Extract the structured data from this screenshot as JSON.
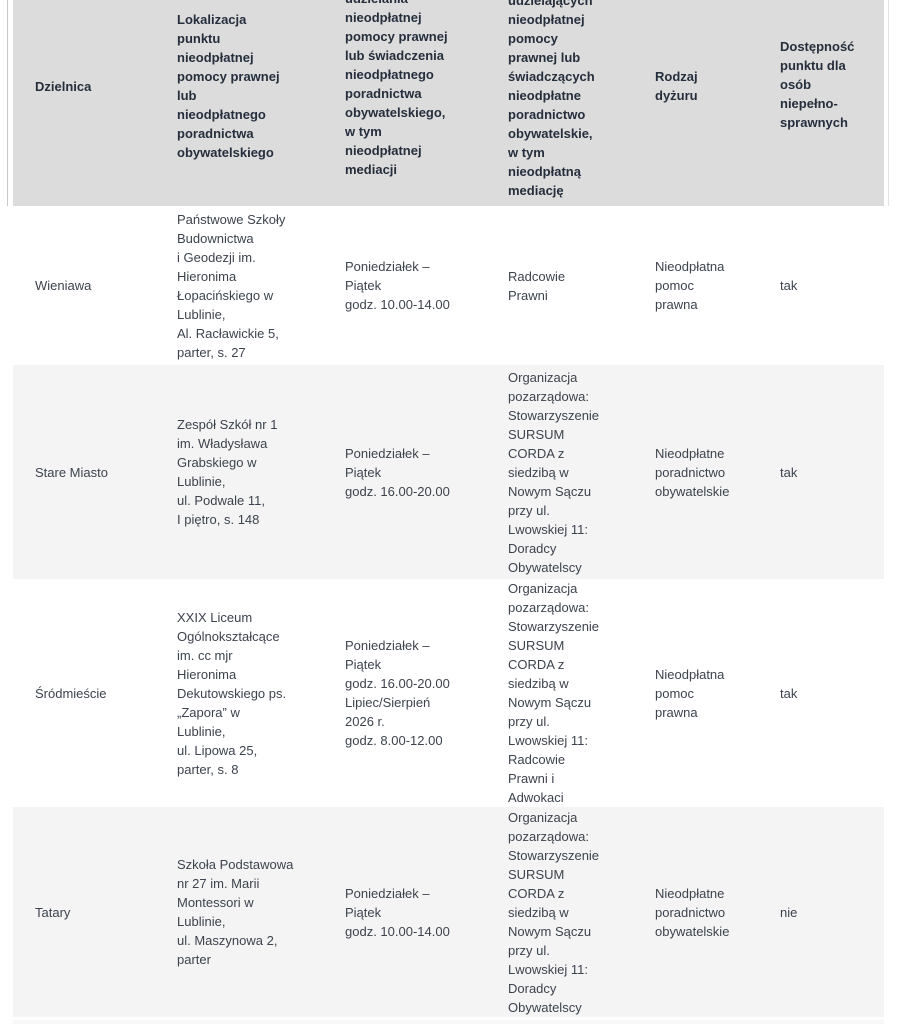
{
  "colors": {
    "header_bg": "#dcdcdc",
    "row_alt_bg": "#f4f4f4",
    "row_bg": "#ffffff",
    "header_text": "#252e3c",
    "body_text": "#3d434d"
  },
  "table": {
    "columns": [
      {
        "label": "Dzielnica"
      },
      {
        "label": "Lokalizacja\npunktu\nnieodpłatnej\npomocy prawnej\nlub\nnieodpłatnego\nporadnictwa\nobywatelskiego"
      },
      {
        "label": "udzielania\nnieodpłatnej\npomocy prawnej\nlub świadczenia\nnieodpłatnego\nporadnictwa\nobywatelskiego,\nw tym\nnieodpłatnej\nmediacji"
      },
      {
        "label": "udzielających\nnieodpłatnej\npomocy\nprawnej lub\nświadczących\nnieodpłatne\nporadnictwo\nobywatelskie,\nw tym\nnieodpłatną\nmediację"
      },
      {
        "label": "Rodzaj\ndyżuru"
      },
      {
        "label": "Dostępność\npunktu dla\nosób\nniepełno-\nsprawnych"
      }
    ],
    "rows": [
      {
        "district": "Wieniawa",
        "location": "Państwowe Szkoły\nBudownictwa\ni Geodezji im.\nHieronima\nŁopacińskiego w\nLublinie,\nAl. Racławickie 5,\nparter, s. 27",
        "schedule": "Poniedziałek –\nPiątek\ngodz. 10.00-14.00",
        "providers": "Radcowie\nPrawni",
        "duty_type": "Nieodpłatna\npomoc\nprawna",
        "accessibility": "tak"
      },
      {
        "district": "Stare Miasto",
        "location": "Zespół Szkół nr 1\nim. Władysława\nGrabskiego w\nLublinie,\nul. Podwale 11,\nI piętro, s. 148",
        "schedule": "Poniedziałek –\nPiątek\ngodz. 16.00-20.00",
        "providers": "Organizacja\npozarządowa:\nStowarzyszenie\nSURSUM\nCORDA z\nsiedzibą w\nNowym Sączu\nprzy ul.\nLwowskiej 11:\nDoradcy\nObywatelscy",
        "duty_type": "Nieodpłatne\nporadnictwo\nobywatelskie",
        "accessibility": "tak"
      },
      {
        "district": "Śródmieście",
        "location": "XXIX Liceum\nOgólnokształcące\nim. cc mjr\nHieronima\nDekutowskiego ps.\n„Zapora” w\nLublinie,\nul. Lipowa 25,\nparter, s. 8",
        "schedule": "Poniedziałek –\nPiątek\ngodz. 16.00-20.00\nLipiec/Sierpień\n2026 r.\ngodz. 8.00-12.00",
        "providers": "Organizacja\npozarządowa:\nStowarzyszenie\nSURSUM\nCORDA z\nsiedzibą w\nNowym Sączu\nprzy ul.\nLwowskiej 11:\nRadcowie\nPrawni i\nAdwokaci",
        "duty_type": "Nieodpłatna\npomoc\nprawna",
        "accessibility": "tak"
      },
      {
        "district": "Tatary",
        "location": "Szkoła Podstawowa\nnr 27 im. Marii\nMontessori w\nLublinie,\nul. Maszynowa 2,\nparter",
        "schedule": "Poniedziałek –\nPiątek\ngodz. 10.00-14.00",
        "providers": "Organizacja\npozarządowa:\nStowarzyszenie\nSURSUM\nCORDA z\nsiedzibą w\nNowym Sączu\nprzy ul.\nLwowskiej 11:\nDoradcy\nObywatelscy",
        "duty_type": "Nieodpłatne\nporadnictwo\nobywatelskie",
        "accessibility": "nie"
      }
    ]
  }
}
